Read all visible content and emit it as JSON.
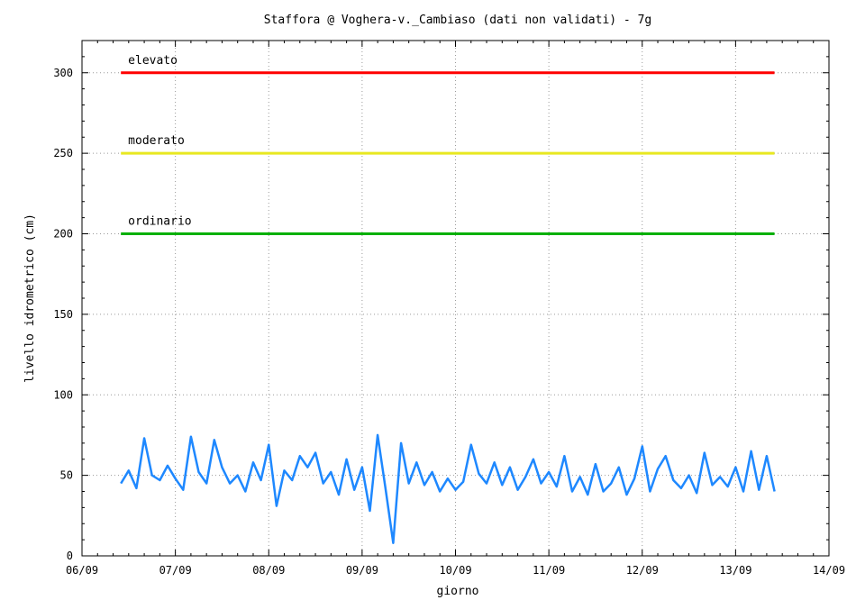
{
  "chart_data": {
    "type": "line",
    "title": "Staffora @  Voghera-v._Cambiaso (dati non validati) - 7g",
    "xlabel": "giorno",
    "ylabel": "livello idrometrico (cm)",
    "ylim": [
      0,
      320
    ],
    "yticks": [
      0,
      50,
      100,
      150,
      200,
      250,
      300
    ],
    "xlim": [
      "06/09",
      "14/09"
    ],
    "xticks": [
      "06/09",
      "07/09",
      "08/09",
      "09/09",
      "10/09",
      "11/09",
      "12/09",
      "13/09",
      "14/09"
    ],
    "grid": true,
    "thresholds": [
      {
        "label": "elevato",
        "value": 300,
        "color": "#ff0000"
      },
      {
        "label": "moderato",
        "value": 250,
        "color": "#e8e820"
      },
      {
        "label": "ordinario",
        "value": 200,
        "color": "#00b000"
      }
    ],
    "series": [
      {
        "color": "#1e88ff",
        "x": [
          "06/09 10:00",
          "06/09 12:00",
          "06/09 14:00",
          "06/09 16:00",
          "06/09 18:00",
          "06/09 20:00",
          "06/09 22:00",
          "07/09 00:00",
          "07/09 02:00",
          "07/09 04:00",
          "07/09 06:00",
          "07/09 08:00",
          "07/09 10:00",
          "07/09 12:00",
          "07/09 14:00",
          "07/09 16:00",
          "07/09 18:00",
          "07/09 20:00",
          "07/09 22:00",
          "08/09 00:00",
          "08/09 02:00",
          "08/09 04:00",
          "08/09 06:00",
          "08/09 08:00",
          "08/09 10:00",
          "08/09 12:00",
          "08/09 14:00",
          "08/09 16:00",
          "08/09 18:00",
          "08/09 20:00",
          "08/09 22:00",
          "09/09 00:00",
          "09/09 02:00",
          "09/09 04:00",
          "09/09 06:00",
          "09/09 08:00",
          "09/09 10:00",
          "09/09 12:00",
          "09/09 14:00",
          "09/09 16:00",
          "09/09 18:00",
          "09/09 20:00",
          "09/09 22:00",
          "10/09 00:00",
          "10/09 02:00",
          "10/09 04:00",
          "10/09 06:00",
          "10/09 08:00",
          "10/09 10:00",
          "10/09 12:00",
          "10/09 14:00",
          "10/09 16:00",
          "10/09 18:00",
          "10/09 20:00",
          "10/09 22:00",
          "11/09 00:00",
          "11/09 02:00",
          "11/09 04:00",
          "11/09 06:00",
          "11/09 08:00",
          "11/09 10:00",
          "11/09 12:00",
          "11/09 14:00",
          "11/09 16:00",
          "11/09 18:00",
          "11/09 20:00",
          "11/09 22:00",
          "12/09 00:00",
          "12/09 02:00",
          "12/09 04:00",
          "12/09 06:00",
          "12/09 08:00",
          "12/09 10:00",
          "12/09 12:00",
          "12/09 14:00",
          "12/09 16:00",
          "12/09 18:00",
          "12/09 20:00",
          "12/09 22:00",
          "13/09 00:00",
          "13/09 02:00",
          "13/09 04:00",
          "13/09 06:00",
          "13/09 08:00",
          "13/09 10:00"
        ],
        "values": [
          45,
          53,
          42,
          73,
          50,
          47,
          56,
          48,
          41,
          74,
          52,
          45,
          72,
          55,
          45,
          50,
          40,
          58,
          47,
          69,
          31,
          53,
          47,
          62,
          55,
          64,
          45,
          52,
          38,
          60,
          41,
          55,
          28,
          75,
          42,
          8,
          70,
          45,
          58,
          44,
          52,
          40,
          48,
          41,
          46,
          69,
          51,
          45,
          58,
          44,
          55,
          41,
          49,
          60,
          45,
          52,
          43,
          62,
          40,
          49,
          38,
          57,
          40,
          45,
          55,
          38,
          48,
          68,
          40,
          54,
          62,
          47,
          42,
          50,
          39,
          64,
          44,
          49,
          43,
          55,
          40,
          65,
          41,
          62,
          40
        ]
      }
    ]
  }
}
